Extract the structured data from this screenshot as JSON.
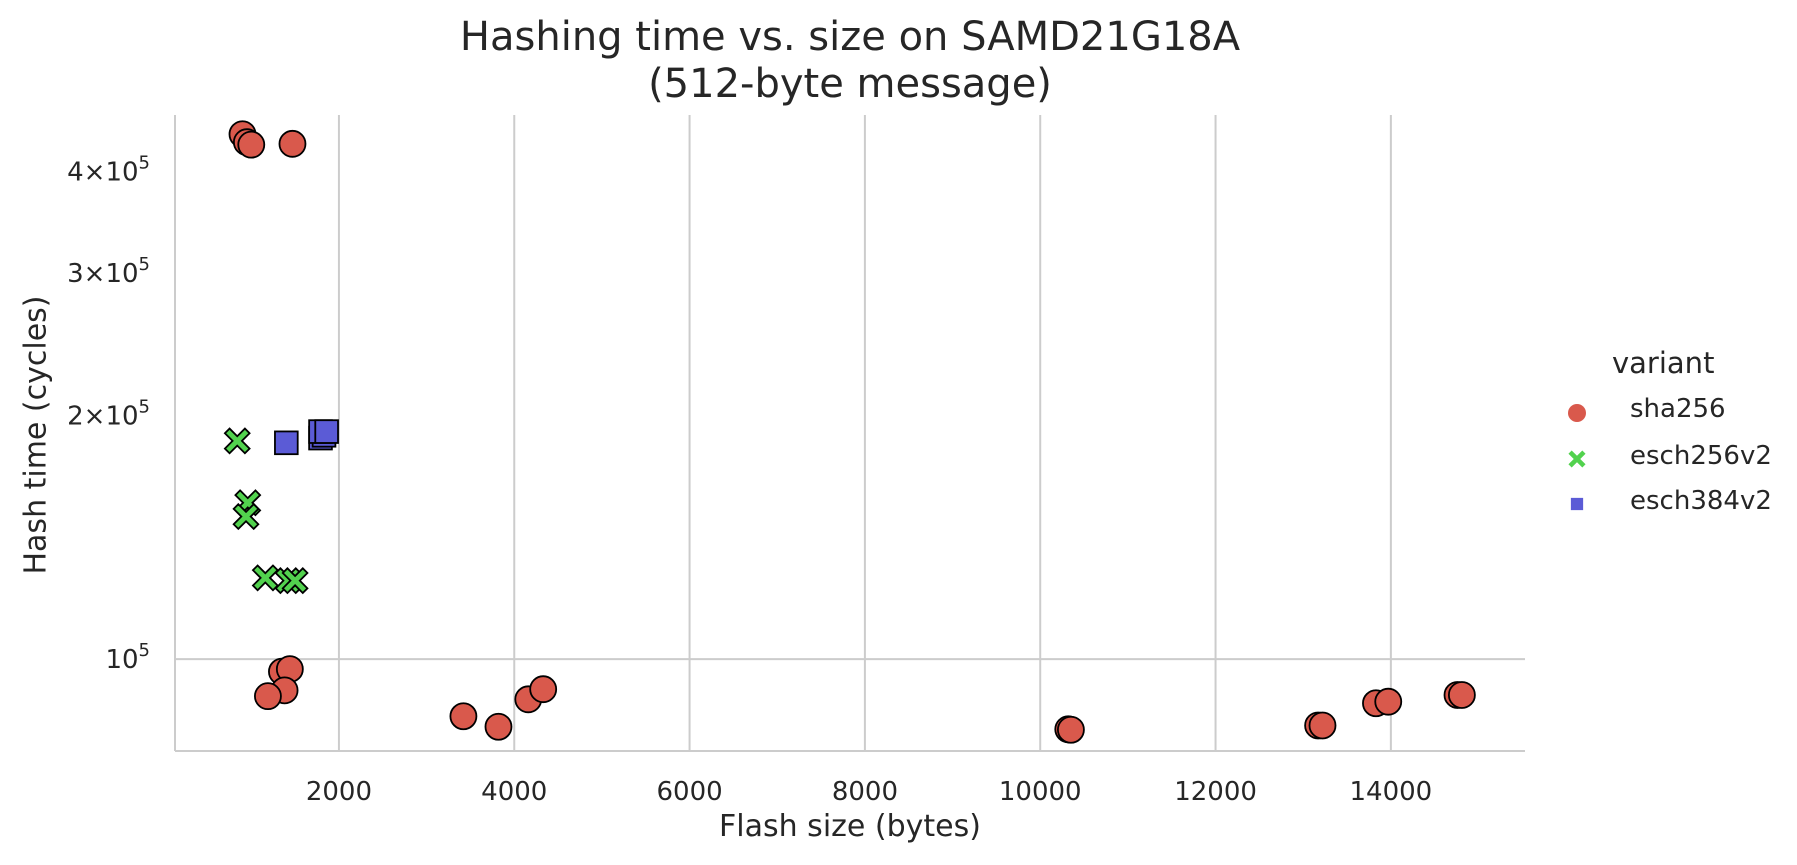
{
  "chart_data": {
    "type": "scatter",
    "title": "Hashing time vs. size on SAMD21G18A",
    "subtitle": "(512-byte message)",
    "xlabel": "Flash size (bytes)",
    "ylabel": "Hash time (cycles)",
    "x_ticks": [
      "2000",
      "4000",
      "6000",
      "8000",
      "10000",
      "12000",
      "14000"
    ],
    "y_ticks": [
      {
        "value": 100000,
        "mantissa": "",
        "base": "10",
        "exp": "5"
      },
      {
        "value": 200000,
        "mantissa": "2×",
        "base": "10",
        "exp": "5"
      },
      {
        "value": 300000,
        "mantissa": "3×",
        "base": "10",
        "exp": "5"
      },
      {
        "value": 400000,
        "mantissa": "4×",
        "base": "10",
        "exp": "5"
      }
    ],
    "xlim": [
      130,
      15530
    ],
    "ylim": [
      77000,
      470000
    ],
    "yscale": "log",
    "grid": true,
    "legend_title": "variant",
    "legend_position": "right",
    "series": [
      {
        "name": "sha256",
        "marker": "circle",
        "color": "#d9594c",
        "points": [
          [
            900,
            445000
          ],
          [
            950,
            435000
          ],
          [
            1000,
            432000
          ],
          [
            1470,
            433000
          ],
          [
            1350,
            96500
          ],
          [
            1440,
            97200
          ],
          [
            1380,
            91500
          ],
          [
            1190,
            90000
          ],
          [
            3420,
            85000
          ],
          [
            3820,
            82500
          ],
          [
            4160,
            89200
          ],
          [
            4330,
            91800
          ],
          [
            10320,
            81900
          ],
          [
            10350,
            81800
          ],
          [
            13170,
            82800
          ],
          [
            13220,
            82800
          ],
          [
            13830,
            88200
          ],
          [
            13970,
            88600
          ],
          [
            14760,
            90300
          ],
          [
            14810,
            90300
          ]
        ]
      },
      {
        "name": "esch256v2",
        "marker": "x",
        "color": "#52d24e",
        "points": [
          [
            840,
            186000
          ],
          [
            960,
            156000
          ],
          [
            940,
            150000
          ],
          [
            1160,
            126000
          ],
          [
            1420,
            125000
          ],
          [
            1500,
            125000
          ]
        ]
      },
      {
        "name": "esch384v2",
        "marker": "square",
        "color": "#5b5bd6",
        "points": [
          [
            1400,
            185000
          ],
          [
            1790,
            187500
          ],
          [
            1830,
            189000
          ],
          [
            1790,
            191000
          ],
          [
            1860,
            191000
          ]
        ]
      }
    ]
  }
}
